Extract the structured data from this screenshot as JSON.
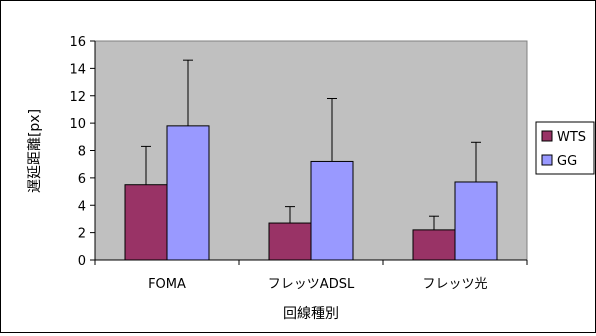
{
  "chart_data": {
    "type": "bar",
    "title": "",
    "xlabel": "回線種別",
    "ylabel": "遅延距離[px]",
    "ylim": [
      0,
      16
    ],
    "yticks": [
      0,
      2,
      4,
      6,
      8,
      10,
      12,
      14,
      16
    ],
    "categories": [
      "FOMA",
      "フレッツADSL",
      "フレッツ光"
    ],
    "series": [
      {
        "name": "WTS",
        "values": [
          5.5,
          2.7,
          2.2
        ],
        "errors": [
          2.8,
          1.2,
          1.0
        ],
        "color": "#993366"
      },
      {
        "name": "GG",
        "values": [
          9.8,
          7.2,
          5.7
        ],
        "errors": [
          4.8,
          4.6,
          2.9
        ],
        "color": "#9999ff"
      }
    ],
    "plot_background": "#c0c0c0",
    "grid": false,
    "error_bars": "upper",
    "legend": "right"
  }
}
